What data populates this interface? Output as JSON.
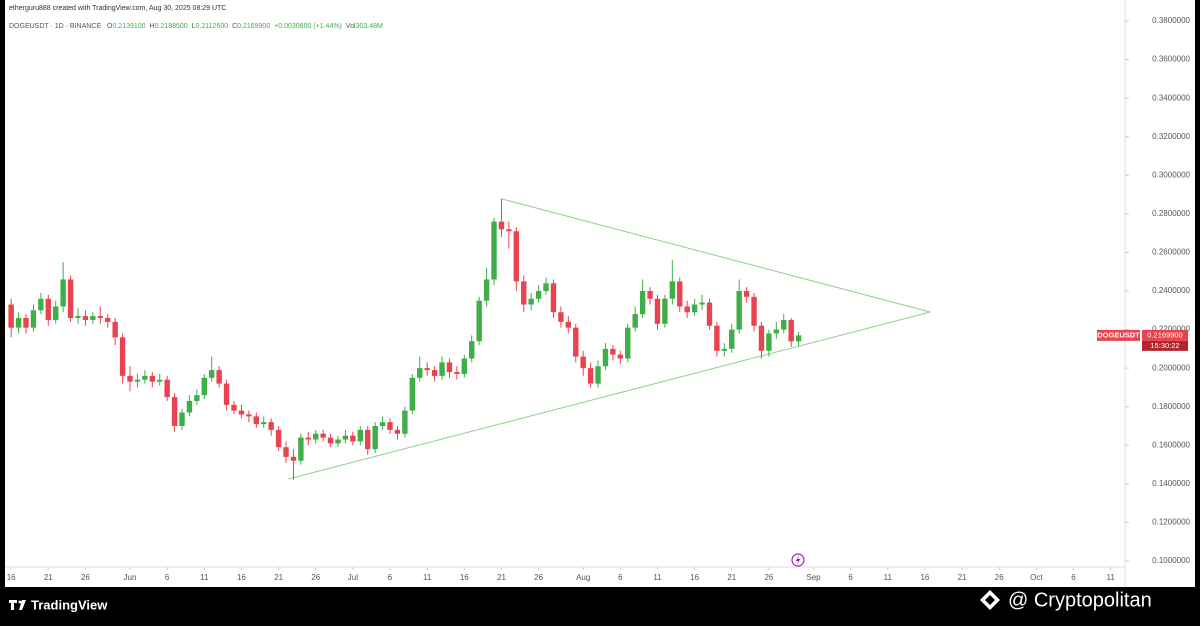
{
  "header": {
    "author_line": "etherguru888 created with TradingView.com, Aug 30, 2025 08:29 UTC",
    "symbol": "DOGEUSDT · 1D · BINANCE",
    "ohlc": [
      {
        "key": "O",
        "value": "0.2139100"
      },
      {
        "key": "H",
        "value": "0.2188500"
      },
      {
        "key": "L",
        "value": "0.2112600"
      },
      {
        "key": "C",
        "value": "0.2169900"
      }
    ],
    "change": "+0.0030800 (+1.44%)",
    "volume_key": "Vol",
    "volume": "303.48M"
  },
  "price_tag": {
    "symbol": "DOGEUSDT",
    "price": "0.2169900",
    "countdown": "15:30:22"
  },
  "footer": {
    "brand": "TradingView",
    "watermark": "@ Cryptopolitan"
  },
  "chart_data": {
    "type": "candlestick",
    "up_color": "#3fae49",
    "down_color": "#e8434f",
    "x": [
      0,
      1,
      2,
      3,
      4,
      5,
      6,
      7,
      8,
      9,
      10,
      11,
      12,
      13,
      14,
      15,
      16,
      17,
      18,
      19,
      20,
      21,
      22,
      23,
      24,
      25,
      26,
      27,
      28,
      29,
      30,
      31,
      32,
      33,
      34,
      35,
      36,
      37,
      38,
      39,
      40,
      41,
      42,
      43,
      44,
      45,
      46,
      47,
      48,
      49,
      50,
      51,
      52,
      53,
      54,
      55,
      56,
      57,
      58,
      59,
      60,
      61,
      62,
      63,
      64,
      65,
      66,
      67,
      68,
      69,
      70,
      71,
      72,
      73,
      74,
      75,
      76,
      77,
      78,
      79,
      80,
      81,
      82,
      83,
      84,
      85,
      86,
      87,
      88,
      89,
      90,
      91,
      92,
      93,
      94,
      95,
      96,
      97,
      98,
      99,
      100,
      101,
      102,
      103,
      104,
      105,
      106
    ],
    "open": [
      0.233,
      0.221,
      0.226,
      0.221,
      0.23,
      0.236,
      0.225,
      0.232,
      0.246,
      0.226,
      0.227,
      0.225,
      0.227,
      0.226,
      0.224,
      0.216,
      0.196,
      0.193,
      0.194,
      0.196,
      0.193,
      0.194,
      0.185,
      0.17,
      0.177,
      0.183,
      0.186,
      0.195,
      0.199,
      0.192,
      0.181,
      0.178,
      0.176,
      0.175,
      0.171,
      0.172,
      0.168,
      0.159,
      0.154,
      0.152,
      0.164,
      0.163,
      0.166,
      0.164,
      0.161,
      0.163,
      0.165,
      0.162,
      0.168,
      0.158,
      0.17,
      0.172,
      0.168,
      0.166,
      0.178,
      0.195,
      0.2,
      0.199,
      0.196,
      0.203,
      0.198,
      0.197,
      0.205,
      0.214,
      0.235,
      0.246,
      0.276,
      0.272,
      0.271,
      0.245,
      0.233,
      0.236,
      0.24,
      0.244,
      0.229,
      0.224,
      0.221,
      0.206,
      0.2,
      0.192,
      0.201,
      0.21,
      0.207,
      0.205,
      0.221,
      0.228,
      0.24,
      0.236,
      0.223,
      0.236,
      0.245,
      0.232,
      0.229,
      0.233,
      0.234,
      0.222,
      0.209,
      0.21,
      0.22,
      0.24,
      0.237,
      0.222,
      0.209,
      0.218,
      0.22,
      0.225,
      0.21391
    ],
    "high": [
      0.236,
      0.229,
      0.228,
      0.233,
      0.239,
      0.238,
      0.235,
      0.255,
      0.248,
      0.231,
      0.23,
      0.229,
      0.232,
      0.228,
      0.226,
      0.218,
      0.201,
      0.197,
      0.199,
      0.198,
      0.197,
      0.196,
      0.187,
      0.179,
      0.186,
      0.189,
      0.197,
      0.206,
      0.201,
      0.194,
      0.183,
      0.181,
      0.178,
      0.177,
      0.175,
      0.174,
      0.17,
      0.162,
      0.158,
      0.166,
      0.167,
      0.168,
      0.168,
      0.166,
      0.165,
      0.168,
      0.167,
      0.17,
      0.17,
      0.172,
      0.175,
      0.174,
      0.17,
      0.18,
      0.197,
      0.206,
      0.203,
      0.201,
      0.206,
      0.205,
      0.201,
      0.207,
      0.217,
      0.237,
      0.252,
      0.278,
      0.288,
      0.276,
      0.273,
      0.248,
      0.239,
      0.243,
      0.247,
      0.246,
      0.232,
      0.227,
      0.223,
      0.209,
      0.203,
      0.204,
      0.213,
      0.212,
      0.209,
      0.223,
      0.232,
      0.246,
      0.242,
      0.238,
      0.238,
      0.256,
      0.247,
      0.235,
      0.236,
      0.238,
      0.236,
      0.224,
      0.213,
      0.223,
      0.246,
      0.242,
      0.239,
      0.224,
      0.22,
      0.224,
      0.228,
      0.226,
      0.21885
    ],
    "low": [
      0.216,
      0.218,
      0.218,
      0.219,
      0.228,
      0.222,
      0.223,
      0.229,
      0.224,
      0.223,
      0.222,
      0.223,
      0.223,
      0.221,
      0.212,
      0.192,
      0.188,
      0.19,
      0.192,
      0.19,
      0.191,
      0.183,
      0.167,
      0.168,
      0.175,
      0.181,
      0.184,
      0.193,
      0.19,
      0.178,
      0.176,
      0.174,
      0.172,
      0.169,
      0.169,
      0.165,
      0.157,
      0.151,
      0.142,
      0.15,
      0.16,
      0.161,
      0.162,
      0.159,
      0.159,
      0.161,
      0.16,
      0.16,
      0.155,
      0.156,
      0.168,
      0.166,
      0.163,
      0.164,
      0.176,
      0.193,
      0.196,
      0.193,
      0.194,
      0.195,
      0.194,
      0.195,
      0.203,
      0.212,
      0.232,
      0.243,
      0.268,
      0.262,
      0.24,
      0.229,
      0.23,
      0.234,
      0.238,
      0.226,
      0.221,
      0.218,
      0.203,
      0.196,
      0.19,
      0.19,
      0.199,
      0.204,
      0.202,
      0.203,
      0.219,
      0.226,
      0.233,
      0.22,
      0.221,
      0.233,
      0.229,
      0.226,
      0.227,
      0.23,
      0.22,
      0.206,
      0.206,
      0.208,
      0.218,
      0.234,
      0.219,
      0.205,
      0.206,
      0.215,
      0.218,
      0.211,
      0.21126
    ],
    "close": [
      0.221,
      0.226,
      0.221,
      0.23,
      0.236,
      0.225,
      0.232,
      0.246,
      0.226,
      0.227,
      0.225,
      0.227,
      0.226,
      0.224,
      0.216,
      0.196,
      0.193,
      0.194,
      0.196,
      0.193,
      0.194,
      0.185,
      0.17,
      0.177,
      0.183,
      0.186,
      0.195,
      0.199,
      0.192,
      0.181,
      0.178,
      0.176,
      0.175,
      0.171,
      0.172,
      0.168,
      0.159,
      0.154,
      0.152,
      0.164,
      0.163,
      0.166,
      0.164,
      0.161,
      0.163,
      0.165,
      0.162,
      0.168,
      0.158,
      0.17,
      0.172,
      0.168,
      0.166,
      0.178,
      0.195,
      0.2,
      0.199,
      0.196,
      0.203,
      0.198,
      0.197,
      0.205,
      0.214,
      0.235,
      0.246,
      0.276,
      0.272,
      0.271,
      0.245,
      0.233,
      0.236,
      0.24,
      0.244,
      0.229,
      0.224,
      0.221,
      0.206,
      0.2,
      0.192,
      0.201,
      0.21,
      0.207,
      0.205,
      0.221,
      0.228,
      0.24,
      0.236,
      0.223,
      0.236,
      0.245,
      0.232,
      0.229,
      0.233,
      0.234,
      0.222,
      0.209,
      0.21,
      0.22,
      0.24,
      0.237,
      0.222,
      0.209,
      0.218,
      0.22,
      0.225,
      0.2139,
      0.21699
    ],
    "trendlines": [
      {
        "x": [
          66.1,
          123.7
        ],
        "y": [
          0.2877,
          0.2291
        ]
      },
      {
        "x": [
          37.3,
          123.7
        ],
        "y": [
          0.1425,
          0.2291
        ]
      }
    ],
    "trendline_color": "#8fcf8a",
    "xlim": [
      -1.5,
      150
    ],
    "ylim": [
      0.0974,
      0.3847
    ],
    "xticks": [
      {
        "value": 0,
        "label": "16"
      },
      {
        "value": 5,
        "label": "21"
      },
      {
        "value": 10,
        "label": "26"
      },
      {
        "value": 16,
        "label": "Jun"
      },
      {
        "value": 21,
        "label": "6"
      },
      {
        "value": 26,
        "label": "11"
      },
      {
        "value": 31,
        "label": "16"
      },
      {
        "value": 36,
        "label": "21"
      },
      {
        "value": 41,
        "label": "26"
      },
      {
        "value": 46,
        "label": "Jul"
      },
      {
        "value": 51,
        "label": "6"
      },
      {
        "value": 56,
        "label": "11"
      },
      {
        "value": 61,
        "label": "16"
      },
      {
        "value": 66,
        "label": "21"
      },
      {
        "value": 71,
        "label": "26"
      },
      {
        "value": 77,
        "label": "Aug"
      },
      {
        "value": 82,
        "label": "6"
      },
      {
        "value": 87,
        "label": "11"
      },
      {
        "value": 92,
        "label": "16"
      },
      {
        "value": 97,
        "label": "21"
      },
      {
        "value": 102,
        "label": "26"
      },
      {
        "value": 108,
        "label": "Sep"
      },
      {
        "value": 113,
        "label": "6"
      },
      {
        "value": 118,
        "label": "11"
      },
      {
        "value": 123,
        "label": "16"
      },
      {
        "value": 128,
        "label": "21"
      },
      {
        "value": 133,
        "label": "26"
      },
      {
        "value": 138,
        "label": "Oct"
      },
      {
        "value": 143,
        "label": "6"
      },
      {
        "value": 148,
        "label": "11"
      }
    ],
    "yticks": [
      {
        "value": 0.38,
        "label": "0.3800000"
      },
      {
        "value": 0.36,
        "label": "0.3600000"
      },
      {
        "value": 0.34,
        "label": "0.3400000"
      },
      {
        "value": 0.32,
        "label": "0.3200000"
      },
      {
        "value": 0.3,
        "label": "0.3000000"
      },
      {
        "value": 0.28,
        "label": "0.2800000"
      },
      {
        "value": 0.26,
        "label": "0.2600000"
      },
      {
        "value": 0.24,
        "label": "0.2400000"
      },
      {
        "value": 0.22,
        "label": "0.2200000"
      },
      {
        "value": 0.2,
        "label": "0.2000000"
      },
      {
        "value": 0.18,
        "label": "0.1800000"
      },
      {
        "value": 0.16,
        "label": "0.1600000"
      },
      {
        "value": 0.14,
        "label": "0.1400000"
      },
      {
        "value": 0.12,
        "label": "0.1200000"
      },
      {
        "value": 0.1,
        "label": "0.1000000"
      }
    ]
  }
}
